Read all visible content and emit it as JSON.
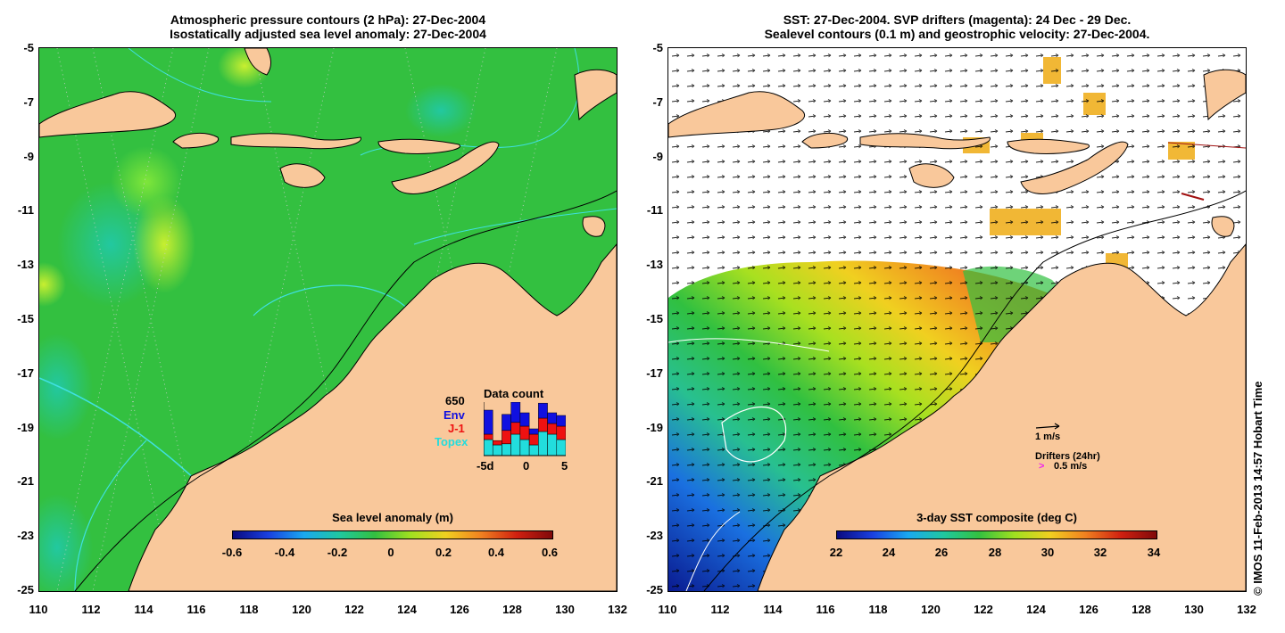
{
  "left_panel": {
    "title_line1": "Atmospheric pressure contours (2 hPa): 27-Dec-2004",
    "title_line2": "Isostatically adjusted sea level anomaly: 27-Dec-2004",
    "colorbar_title": "Sea level anomaly (m)",
    "colorbar_ticks": [
      "-0.6",
      "-0.4",
      "-0.2",
      "0",
      "0.2",
      "0.4",
      "0.6"
    ],
    "data_count": {
      "title": "Data count",
      "max_label": "650",
      "series": [
        {
          "name": "Env",
          "color": "#1010e0"
        },
        {
          "name": "J-1",
          "color": "#ee1111"
        },
        {
          "name": "Topex",
          "color": "#22dddd"
        }
      ],
      "x_ticks": [
        "-5d",
        "0",
        "5"
      ],
      "bars": [
        {
          "topex": 0.3,
          "j1": 0.1,
          "env": 0.45
        },
        {
          "topex": 0.2,
          "j1": 0.08,
          "env": 0.0
        },
        {
          "topex": 0.22,
          "j1": 0.25,
          "env": 0.3
        },
        {
          "topex": 0.4,
          "j1": 0.22,
          "env": 0.38
        },
        {
          "topex": 0.3,
          "j1": 0.25,
          "env": 0.25
        },
        {
          "topex": 0.2,
          "j1": 0.2,
          "env": 0.1
        },
        {
          "topex": 0.45,
          "j1": 0.25,
          "env": 0.28
        },
        {
          "topex": 0.4,
          "j1": 0.2,
          "env": 0.2
        },
        {
          "topex": 0.3,
          "j1": 0.25,
          "env": 0.2
        }
      ]
    }
  },
  "right_panel": {
    "title_line1": "SST: 27-Dec-2004. SVP drifters (magenta): 24 Dec - 29 Dec.",
    "title_line2": "Sealevel contours (0.1 m) and geostrophic velocity: 27-Dec-2004.",
    "colorbar_title": "3-day SST composite (deg C)",
    "colorbar_ticks": [
      "22",
      "24",
      "26",
      "28",
      "30",
      "32",
      "34"
    ],
    "velocity_scale_label": "1 m/s",
    "drifter_label": "Drifters (24hr)",
    "drifter_scale_label": "0.5 m/s",
    "drifter_symbol": ">"
  },
  "axes": {
    "x_ticks": [
      "110",
      "112",
      "114",
      "116",
      "118",
      "120",
      "122",
      "124",
      "126",
      "128",
      "130",
      "132"
    ],
    "y_ticks": [
      "-5",
      "-7",
      "-9",
      "-11",
      "-13",
      "-15",
      "-17",
      "-19",
      "-21",
      "-23",
      "-25"
    ]
  },
  "credit": "© IMOS 11-Feb-2013 14:57 Hobart Time",
  "colors": {
    "land": "#f9c89b",
    "ocean_green": "#33c040",
    "no_data": "#ffffff"
  }
}
